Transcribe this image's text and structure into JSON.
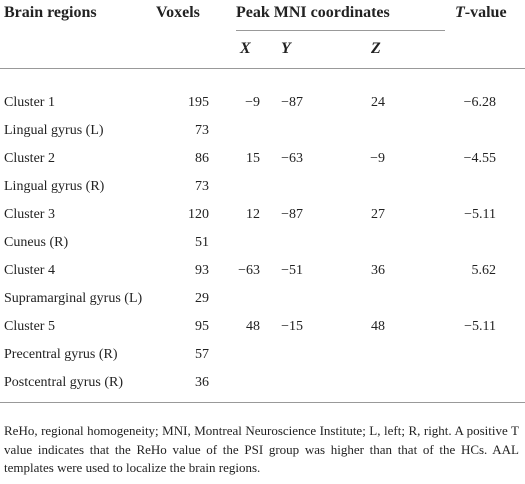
{
  "header": {
    "region": "Brain regions",
    "voxels": "Voxels",
    "peak": "Peak MNI coordinates",
    "t_value": "T-value",
    "x": "X",
    "y": "Y",
    "z": "Z"
  },
  "table": {
    "rows": [
      {
        "region": "Cluster 1",
        "voxels": "195",
        "x": "−9",
        "y": "−87",
        "z": "24",
        "t": "−6.28"
      },
      {
        "region": "Lingual gyrus (L)",
        "voxels": "73"
      },
      {
        "region": "Cluster 2",
        "voxels": "86",
        "x": "15",
        "y": "−63",
        "z": "−9",
        "t": "−4.55"
      },
      {
        "region": "Lingual gyrus (R)",
        "voxels": "73"
      },
      {
        "region": "Cluster 3",
        "voxels": "120",
        "x": "12",
        "y": "−87",
        "z": "27",
        "t": "−5.11"
      },
      {
        "region": "Cuneus (R)",
        "voxels": "51"
      },
      {
        "region": "Cluster 4",
        "voxels": "93",
        "x": "−63",
        "y": "−51",
        "z": "36",
        "t": "5.62"
      },
      {
        "region": "Supramarginal gyrus (L)",
        "voxels": "29"
      },
      {
        "region": "Cluster 5",
        "voxels": "95",
        "x": "48",
        "y": "−15",
        "z": "48",
        "t": "−5.11"
      },
      {
        "region": "Precentral gyrus (R)",
        "voxels": "57"
      },
      {
        "region": "Postcentral gyrus (R)",
        "voxels": "36"
      }
    ]
  },
  "footnote": "ReHo, regional homogeneity; MNI, Montreal Neuroscience Institute; L, left; R, right. A positive T value indicates that the ReHo value of the PSI group was higher than that of the HCs. AAL templates were used to localize the brain regions."
}
